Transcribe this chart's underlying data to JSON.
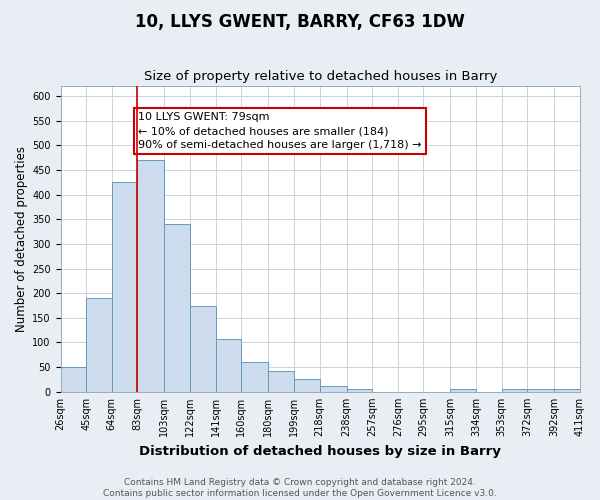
{
  "title": "10, LLYS GWENT, BARRY, CF63 1DW",
  "subtitle": "Size of property relative to detached houses in Barry",
  "xlabel": "Distribution of detached houses by size in Barry",
  "ylabel": "Number of detached properties",
  "bar_left_edges": [
    26,
    45,
    64,
    83,
    103,
    122,
    141,
    160,
    180,
    199,
    218,
    238,
    257,
    276,
    295,
    315,
    334,
    353,
    372,
    392
  ],
  "bar_heights": [
    50,
    190,
    425,
    470,
    340,
    175,
    108,
    60,
    43,
    25,
    11,
    5,
    0,
    0,
    0,
    5,
    0,
    5,
    5,
    5
  ],
  "bar_widths": [
    19,
    19,
    19,
    20,
    19,
    19,
    19,
    20,
    19,
    19,
    20,
    19,
    19,
    19,
    20,
    19,
    19,
    19,
    20,
    19
  ],
  "bar_color": "#ccdcec",
  "bar_edge_color": "#6699bb",
  "bar_edge_width": 0.7,
  "vline_x": 83,
  "vline_color": "#cc0000",
  "vline_linewidth": 1.2,
  "annotation_lines": [
    "10 LLYS GWENT: 79sqm",
    "← 10% of detached houses are smaller (184)",
    "90% of semi-detached houses are larger (1,718) →"
  ],
  "tick_labels": [
    "26sqm",
    "45sqm",
    "64sqm",
    "83sqm",
    "103sqm",
    "122sqm",
    "141sqm",
    "160sqm",
    "180sqm",
    "199sqm",
    "218sqm",
    "238sqm",
    "257sqm",
    "276sqm",
    "295sqm",
    "315sqm",
    "334sqm",
    "353sqm",
    "372sqm",
    "392sqm",
    "411sqm"
  ],
  "ylim": [
    0,
    620
  ],
  "yticks": [
    0,
    50,
    100,
    150,
    200,
    250,
    300,
    350,
    400,
    450,
    500,
    550,
    600
  ],
  "xlim_left": 26,
  "xlim_right": 411,
  "grid_color": "#c8d4e0",
  "bg_color": "#e8eef4",
  "plot_bg_color": "#ffffff",
  "footer_lines": [
    "Contains HM Land Registry data © Crown copyright and database right 2024.",
    "Contains public sector information licensed under the Open Government Licence v3.0."
  ],
  "title_fontsize": 12,
  "subtitle_fontsize": 9.5,
  "xlabel_fontsize": 9.5,
  "ylabel_fontsize": 8.5,
  "tick_fontsize": 7,
  "footer_fontsize": 6.5,
  "ann_fontsize": 8
}
